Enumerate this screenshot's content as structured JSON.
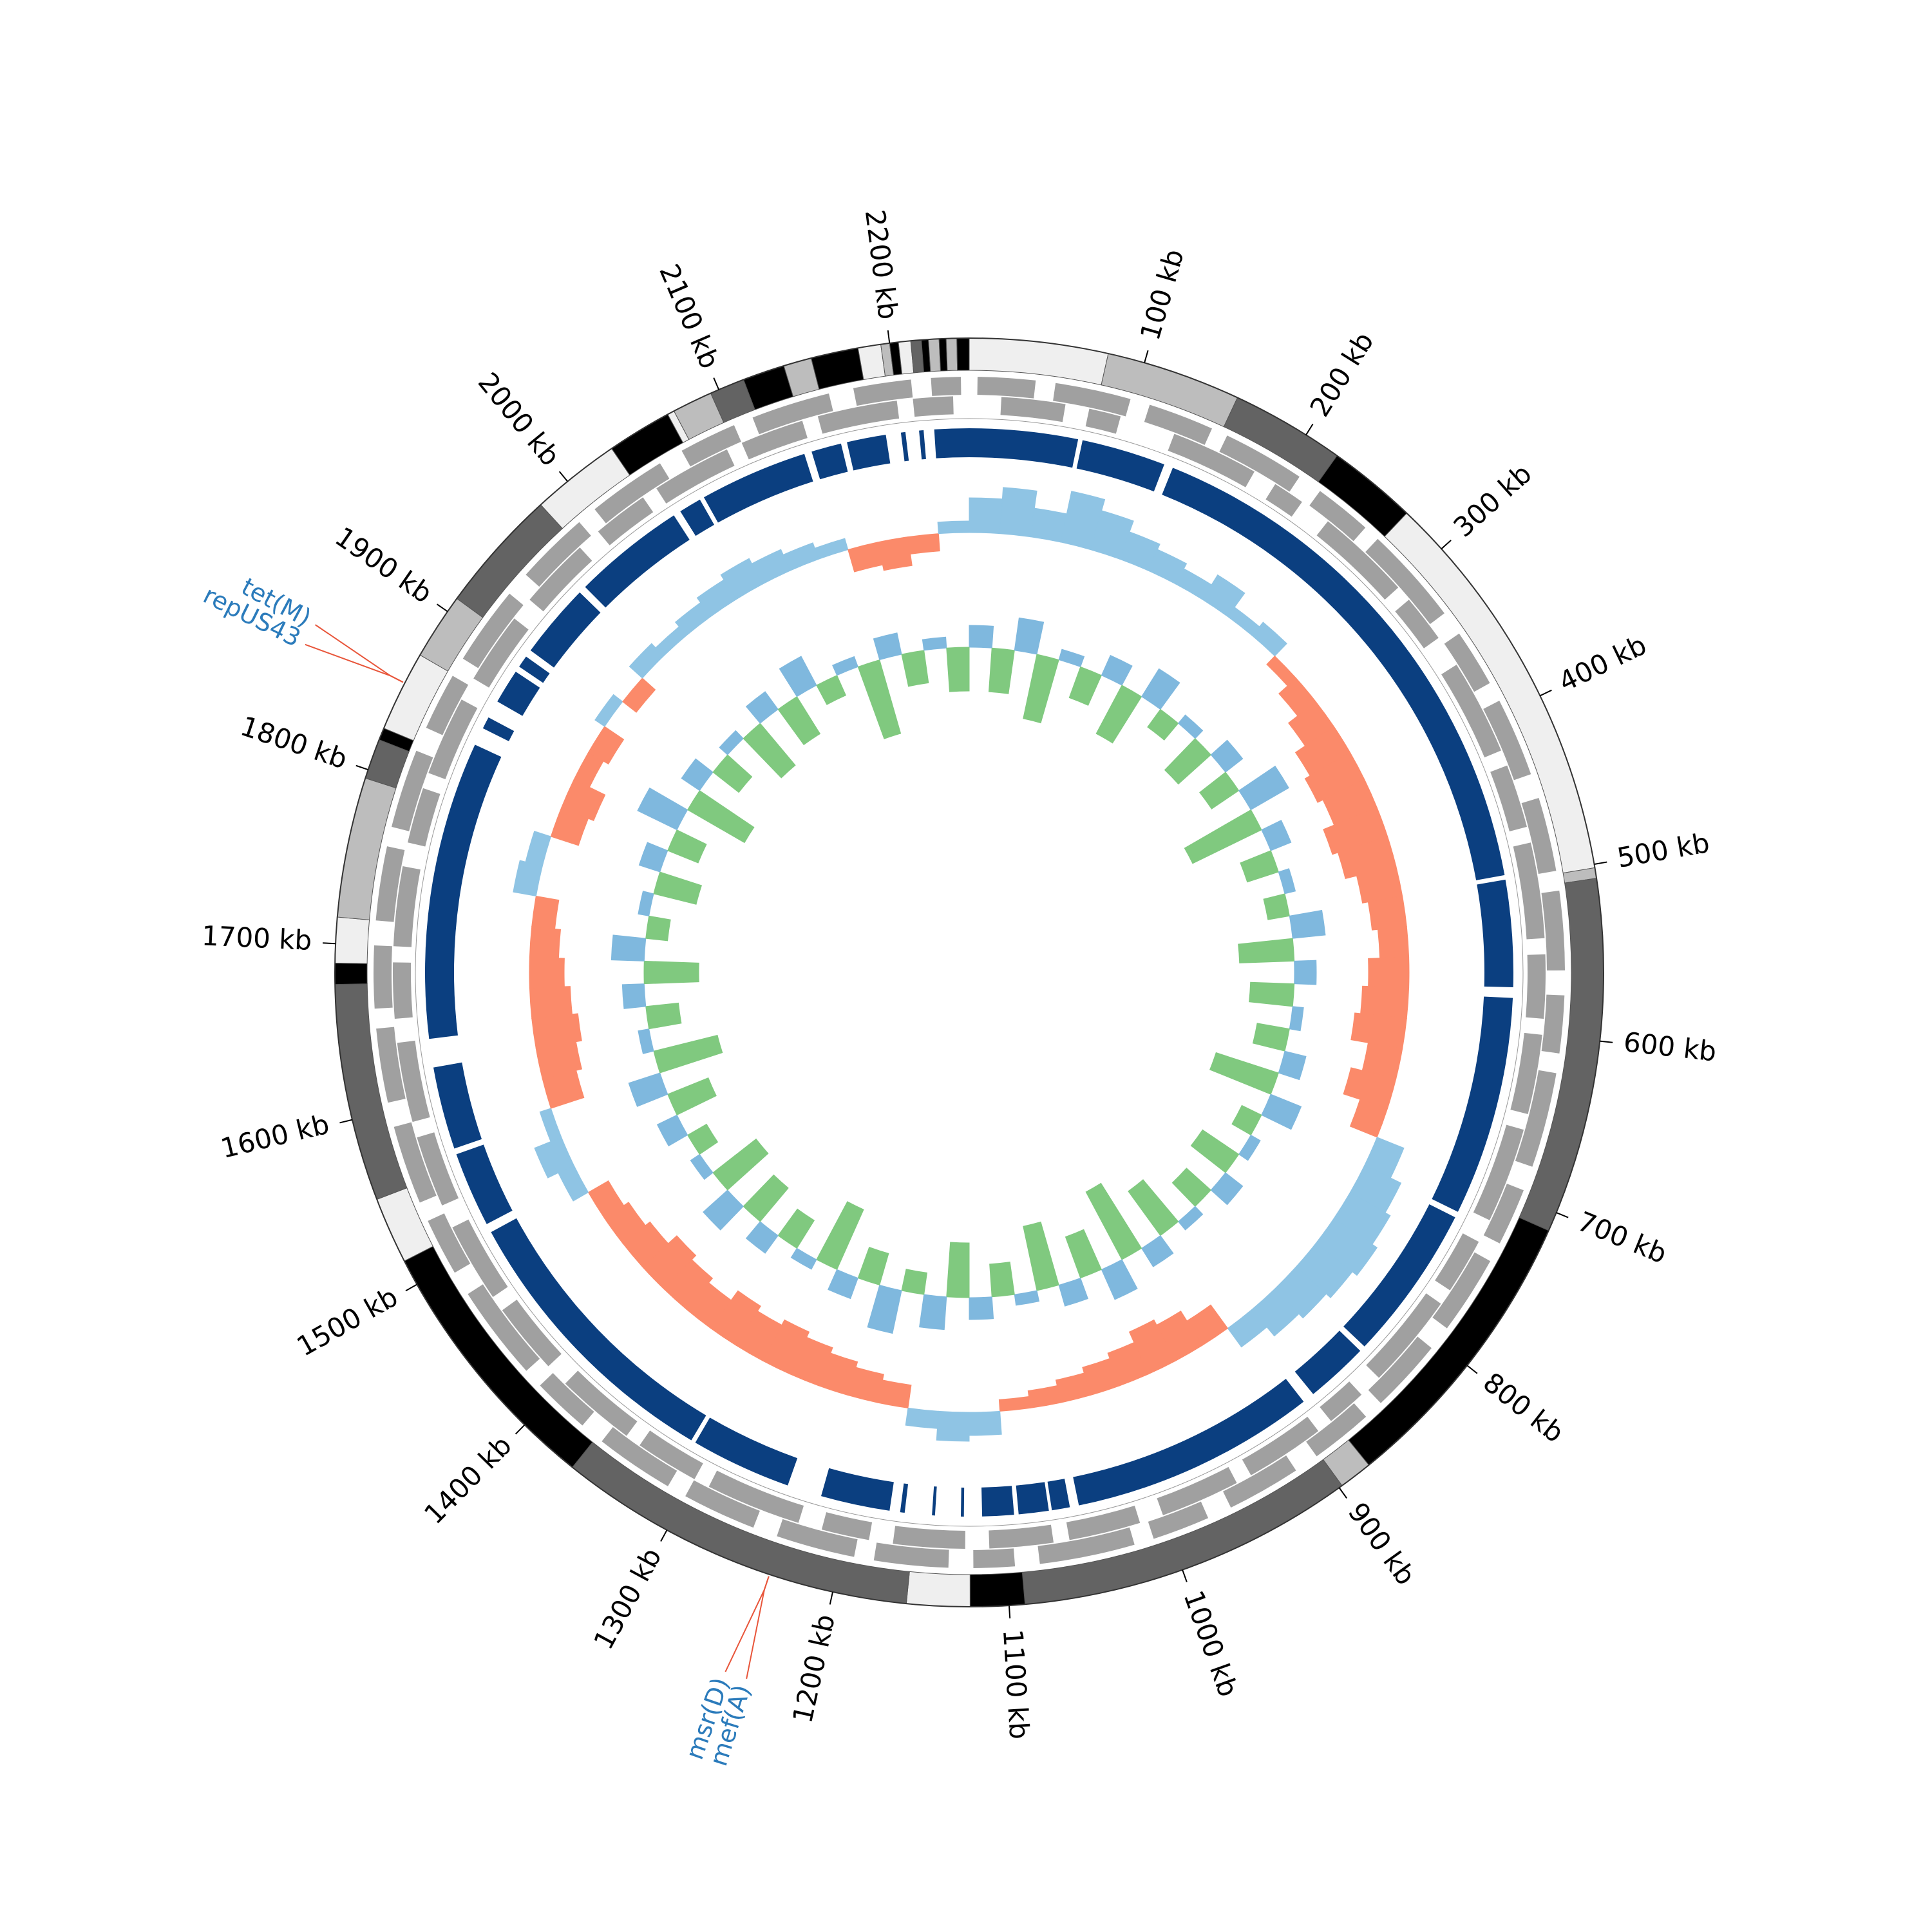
{
  "chart_data": {
    "type": "circos",
    "xlim": [
      0,
      2245
    ],
    "xticks": [
      {
        "value": 100,
        "label": "100 kb"
      },
      {
        "value": 200,
        "label": "200 kb"
      },
      {
        "value": 300,
        "label": "300 kb"
      },
      {
        "value": 400,
        "label": "400 kb"
      },
      {
        "value": 500,
        "label": "500 kb"
      },
      {
        "value": 600,
        "label": "600 kb"
      },
      {
        "value": 700,
        "label": "700 kb"
      },
      {
        "value": 800,
        "label": "800 kb"
      },
      {
        "value": 900,
        "label": "900 kb"
      },
      {
        "value": 1000,
        "label": "1000 kb"
      },
      {
        "value": 1100,
        "label": "1100 kb"
      },
      {
        "value": 1200,
        "label": "1200 kb"
      },
      {
        "value": 1300,
        "label": "1300 kb"
      },
      {
        "value": 1400,
        "label": "1400 kb"
      },
      {
        "value": 1500,
        "label": "1500 kb"
      },
      {
        "value": 1600,
        "label": "1600 kb"
      },
      {
        "value": 1700,
        "label": "1700 kb"
      },
      {
        "value": 1800,
        "label": "1800 kb"
      },
      {
        "value": 1900,
        "label": "1900 kb"
      },
      {
        "value": 2000,
        "label": "2000 kb"
      },
      {
        "value": 2100,
        "label": "2100 kb"
      },
      {
        "value": 2200,
        "label": "2200 kb"
      }
    ],
    "contigs": [
      {
        "start": 0,
        "end": 79,
        "color": "#efefef"
      },
      {
        "start": 79,
        "end": 156,
        "color": "#bdbdbd"
      },
      {
        "start": 156,
        "end": 221,
        "color": "#636363"
      },
      {
        "start": 221,
        "end": 272,
        "color": "#000000"
      },
      {
        "start": 272,
        "end": 502,
        "color": "#efefef"
      },
      {
        "start": 502,
        "end": 508,
        "color": "#bdbdbd"
      },
      {
        "start": 508,
        "end": 711,
        "color": "#636363"
      },
      {
        "start": 711,
        "end": 879,
        "color": "#000000"
      },
      {
        "start": 879,
        "end": 898,
        "color": "#bdbdbd"
      },
      {
        "start": 898,
        "end": 1091,
        "color": "#636363"
      },
      {
        "start": 1091,
        "end": 1122,
        "color": "#000000"
      },
      {
        "start": 1122,
        "end": 1158,
        "color": "#efefef"
      },
      {
        "start": 1158,
        "end": 1364,
        "color": "#636363"
      },
      {
        "start": 1364,
        "end": 1515,
        "color": "#000000"
      },
      {
        "start": 1515,
        "end": 1553,
        "color": "#efefef"
      },
      {
        "start": 1553,
        "end": 1677,
        "color": "#636363"
      },
      {
        "start": 1677,
        "end": 1689,
        "color": "#000000"
      },
      {
        "start": 1689,
        "end": 1715,
        "color": "#efefef"
      },
      {
        "start": 1715,
        "end": 1795,
        "color": "#bdbdbd"
      },
      {
        "start": 1795,
        "end": 1818,
        "color": "#636363"
      },
      {
        "start": 1818,
        "end": 1825,
        "color": "#000000"
      },
      {
        "start": 1825,
        "end": 1871,
        "color": "#efefef"
      },
      {
        "start": 1871,
        "end": 1909,
        "color": "#bdbdbd"
      },
      {
        "start": 1909,
        "end": 1980,
        "color": "#636363"
      },
      {
        "start": 1980,
        "end": 2031,
        "color": "#efefef"
      },
      {
        "start": 2031,
        "end": 2068,
        "color": "#000000"
      },
      {
        "start": 2068,
        "end": 2072,
        "color": "#efefef"
      },
      {
        "start": 2072,
        "end": 2095,
        "color": "#bdbdbd"
      },
      {
        "start": 2095,
        "end": 2115,
        "color": "#636363"
      },
      {
        "start": 2115,
        "end": 2139,
        "color": "#000000"
      },
      {
        "start": 2139,
        "end": 2155,
        "color": "#bdbdbd"
      },
      {
        "start": 2155,
        "end": 2182,
        "color": "#000000"
      },
      {
        "start": 2182,
        "end": 2195,
        "color": "#efefef"
      },
      {
        "start": 2195,
        "end": 2200,
        "color": "#bdbdbd"
      },
      {
        "start": 2200,
        "end": 2205,
        "color": "#000000"
      },
      {
        "start": 2205,
        "end": 2212,
        "color": "#efefef"
      },
      {
        "start": 2212,
        "end": 2218,
        "color": "#636363"
      },
      {
        "start": 2218,
        "end": 2222,
        "color": "#000000"
      },
      {
        "start": 2222,
        "end": 2228,
        "color": "#bdbdbd"
      },
      {
        "start": 2228,
        "end": 2232,
        "color": "#000000"
      },
      {
        "start": 2232,
        "end": 2238,
        "color": "#bdbdbd"
      },
      {
        "start": 2238,
        "end": 2245,
        "color": "#000000"
      }
    ],
    "genes": {
      "color": "#a0a0a0",
      "forward": [
        [
          5,
          40
        ],
        [
          52,
          98
        ],
        [
          110,
          150
        ],
        [
          160,
          210
        ],
        [
          225,
          260
        ],
        [
          270,
          330
        ],
        [
          345,
          380
        ],
        [
          392,
          440
        ],
        [
          455,
          500
        ],
        [
          512,
          560
        ],
        [
          575,
          610
        ],
        [
          622,
          680
        ],
        [
          695,
          730
        ],
        [
          742,
          790
        ],
        [
          805,
          850
        ],
        [
          862,
          900
        ],
        [
          915,
          960
        ],
        [
          975,
          1010
        ],
        [
          1022,
          1080
        ],
        [
          1095,
          1120
        ],
        [
          1135,
          1180
        ],
        [
          1192,
          1240
        ],
        [
          1255,
          1300
        ],
        [
          1312,
          1360
        ],
        [
          1375,
          1410
        ],
        [
          1422,
          1480
        ],
        [
          1495,
          1530
        ],
        [
          1542,
          1590
        ],
        [
          1605,
          1650
        ],
        [
          1662,
          1700
        ],
        [
          1715,
          1760
        ],
        [
          1772,
          1820
        ],
        [
          1835,
          1870
        ],
        [
          1882,
          1930
        ],
        [
          1945,
          1990
        ],
        [
          2002,
          2050
        ],
        [
          2065,
          2100
        ],
        [
          2112,
          2160
        ],
        [
          2175,
          2210
        ],
        [
          2222,
          2240
        ]
      ],
      "reverse": [
        [
          20,
          60
        ],
        [
          75,
          95
        ],
        [
          130,
          185
        ],
        [
          200,
          220
        ],
        [
          240,
          300
        ],
        [
          310,
          340
        ],
        [
          360,
          420
        ],
        [
          430,
          470
        ],
        [
          480,
          540
        ],
        [
          550,
          590
        ],
        [
          600,
          650
        ],
        [
          660,
          720
        ],
        [
          735,
          770
        ],
        [
          780,
          840
        ],
        [
          855,
          880
        ],
        [
          890,
          940
        ],
        [
          950,
          1000
        ],
        [
          1015,
          1060
        ],
        [
          1070,
          1110
        ],
        [
          1125,
          1170
        ],
        [
          1185,
          1215
        ],
        [
          1230,
          1290
        ],
        [
          1300,
          1340
        ],
        [
          1350,
          1400
        ],
        [
          1415,
          1460
        ],
        [
          1470,
          1520
        ],
        [
          1535,
          1580
        ],
        [
          1590,
          1640
        ],
        [
          1655,
          1690
        ],
        [
          1700,
          1750
        ],
        [
          1765,
          1800
        ],
        [
          1810,
          1860
        ],
        [
          1875,
          1920
        ],
        [
          1935,
          1980
        ],
        [
          1995,
          2030
        ],
        [
          2040,
          2090
        ],
        [
          2100,
          2140
        ],
        [
          2150,
          2200
        ],
        [
          2210,
          2235
        ]
      ]
    },
    "alignment": {
      "color": "#0b3f80",
      "blocks": [
        [
          0,
          72
        ],
        [
          75,
          131
        ],
        [
          137,
          497
        ],
        [
          500,
          571
        ],
        [
          578,
          724
        ],
        [
          728,
          832
        ],
        [
          836,
          878
        ],
        [
          886,
          1050
        ],
        [
          1056,
          1068
        ],
        [
          1070,
          1090
        ],
        [
          1093,
          1114
        ],
        [
          1126,
          1128
        ],
        [
          1145,
          1147
        ],
        [
          1165,
          1168
        ],
        [
          1175,
          1221
        ],
        [
          1244,
          1311
        ],
        [
          1314,
          1506
        ],
        [
          1512,
          1562
        ],
        [
          1566,
          1621
        ],
        [
          1640,
          1838
        ],
        [
          1850,
          1858
        ],
        [
          1870,
          1893
        ],
        [
          1897,
          1905
        ],
        [
          1910,
          1960
        ],
        [
          1965,
          2040
        ],
        [
          2045,
          2060
        ],
        [
          2063,
          2135
        ],
        [
          2140,
          2160
        ],
        [
          2164,
          2190
        ],
        [
          2200,
          2203
        ],
        [
          2212,
          2215
        ],
        [
          2222,
          2245
        ]
      ]
    },
    "gc_skew": {
      "positive_color": "#8fc4e4",
      "negative_color": "#fb8a6a",
      "values": [
        0.06,
        0.08,
        0.05,
        0.09,
        0.07,
        0.05,
        0.04,
        0.03,
        0.05,
        0.02,
        0.03,
        -0.02,
        -0.04,
        -0.06,
        -0.08,
        -0.09,
        -0.08,
        -0.1,
        -0.09,
        -0.07,
        -0.06,
        -0.05,
        -0.07,
        -0.08,
        -0.09,
        -0.06,
        -0.08,
        -0.05,
        0.05,
        0.07,
        0.08,
        0.09,
        0.08,
        0.07,
        0.06,
        0.04,
        -0.05,
        -0.07,
        -0.08,
        -0.06,
        -0.05,
        -0.04,
        -0.03,
        -0.02,
        0.04,
        0.05,
        0.03,
        -0.04,
        -0.05,
        -0.06,
        -0.07,
        -0.08,
        -0.07,
        -0.08,
        -0.06,
        -0.07,
        -0.08,
        -0.06,
        -0.05,
        -0.04,
        0.03,
        0.05,
        0.02,
        -0.06,
        -0.07,
        -0.08,
        -0.07,
        -0.06,
        -0.05,
        -0.04,
        0.04,
        0.03,
        -0.05,
        -0.06,
        -0.03,
        -0.04,
        0.02,
        -0.03,
        0.03,
        0.02,
        0.03,
        0.04,
        0.05,
        0.04,
        0.03,
        0.02,
        -0.04,
        -0.05,
        -0.03,
        0.02
      ]
    },
    "gc_content": {
      "positive_color": "#7fb8de",
      "negative_color": "#80c97f",
      "values": [
        2,
        -4,
        3,
        -6,
        1,
        -3,
        2,
        -5,
        3,
        -2,
        1,
        -4,
        2,
        -3,
        4,
        -7,
        2,
        -3,
        1,
        -2,
        3,
        -5,
        2,
        -4,
        1,
        -3,
        2,
        -6,
        3,
        -2,
        1,
        -4,
        2,
        -3,
        1,
        -5,
        2,
        -7,
        3,
        -4,
        2,
        -6,
        1,
        -3,
        2,
        -5,
        3,
        -2,
        4,
        -3,
        2,
        -6,
        1,
        -3,
        2,
        -4,
        3,
        -5,
        1,
        -2,
        2,
        -4,
        3,
        -6,
        1,
        -3,
        2,
        -5,
        3,
        -2,
        1,
        -4,
        2,
        -3,
        4,
        -6,
        2,
        -3,
        1,
        -5,
        2,
        -4,
        3,
        -2,
        1,
        -7,
        2,
        -3,
        1,
        -4
      ]
    },
    "annotations": [
      {
        "position": 1853,
        "labels": [
          "repUS43",
          "tet(M)"
        ]
      },
      {
        "position": 1237,
        "labels": [
          "mef(A)",
          "msr(D)"
        ]
      }
    ]
  }
}
